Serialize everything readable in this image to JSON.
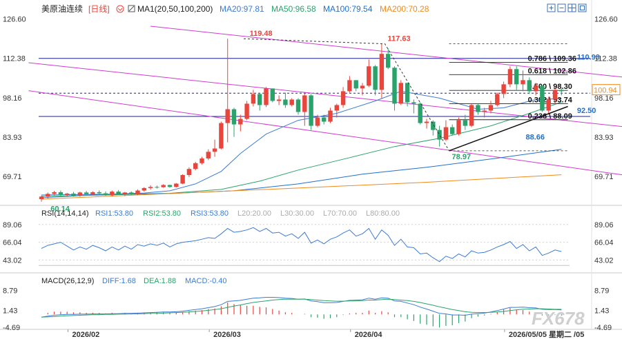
{
  "header": {
    "title": "美原油连续",
    "period": "[日线]",
    "ma1": "MA1(20,50,100,200)",
    "ma20": "MA20:97.81",
    "ma50": "MA50:96.58",
    "ma100": "MA100:79.54",
    "ma200": "MA200:70.28",
    "icons": [
      "toggle-icon",
      "plus-icon",
      "minus-icon",
      "grid-icon",
      "window-icon",
      "close-icon"
    ]
  },
  "colors": {
    "up": "#e8453c",
    "down": "#2aa36b",
    "ma20": "#3a7bd5",
    "ma50": "#2aa36b",
    "ma100": "#1f6fd0",
    "ma200": "#f08a1c",
    "channel": "#d23ad2",
    "hline": "#1b1f8f",
    "rsi1": "#3a7bd5",
    "rsi2": "#2aa36b",
    "rsi3": "#3a7bd5",
    "watermark": "#c7c7c7"
  },
  "chart_data": {
    "type": "candlestick",
    "price_axis": {
      "ticks": [
        "126.60",
        "112.38",
        "98.16",
        "83.93",
        "69.71"
      ],
      "ylim": [
        60,
        128
      ]
    },
    "candles": [
      [
        61.5,
        62.8,
        60.6,
        62.4
      ],
      [
        62.4,
        63.9,
        61.7,
        63.4
      ],
      [
        63.4,
        64.5,
        62.8,
        64.0
      ],
      [
        64.0,
        64.6,
        62.6,
        63.0
      ],
      [
        63.0,
        63.8,
        62.3,
        63.5
      ],
      [
        63.5,
        64.1,
        62.4,
        62.8
      ],
      [
        62.8,
        64.2,
        62.4,
        63.9
      ],
      [
        63.9,
        64.5,
        63.0,
        63.3
      ],
      [
        63.3,
        64.3,
        62.9,
        64.0
      ],
      [
        64.0,
        64.6,
        63.1,
        63.6
      ],
      [
        63.6,
        64.3,
        62.7,
        62.9
      ],
      [
        62.9,
        64.6,
        62.5,
        64.2
      ],
      [
        64.2,
        64.8,
        63.0,
        63.4
      ],
      [
        63.4,
        64.1,
        62.6,
        63.9
      ],
      [
        63.9,
        64.3,
        63.0,
        63.2
      ],
      [
        63.2,
        65.0,
        62.9,
        64.6
      ],
      [
        64.6,
        65.8,
        64.2,
        65.5
      ],
      [
        65.5,
        66.5,
        64.9,
        65.9
      ],
      [
        65.9,
        66.4,
        65.3,
        65.8
      ],
      [
        65.8,
        66.9,
        65.6,
        66.6
      ],
      [
        66.6,
        66.7,
        65.6,
        65.9
      ],
      [
        65.9,
        67.3,
        65.7,
        67.1
      ],
      [
        67.1,
        70.5,
        66.9,
        70.2
      ],
      [
        70.2,
        73.0,
        69.5,
        72.4
      ],
      [
        72.4,
        75.0,
        71.9,
        74.5
      ],
      [
        74.5,
        76.8,
        74.0,
        76.2
      ],
      [
        76.2,
        79.5,
        75.6,
        78.6
      ],
      [
        78.6,
        83.0,
        76.8,
        79.8
      ],
      [
        79.8,
        89.5,
        79.5,
        89.0
      ],
      [
        89.0,
        119.5,
        82.0,
        94.0
      ],
      [
        94.0,
        94.5,
        84.0,
        88.5
      ],
      [
        88.5,
        92.0,
        86.0,
        90.5
      ],
      [
        90.5,
        97.0,
        90.0,
        96.0
      ],
      [
        96.0,
        101.0,
        95.0,
        99.5
      ],
      [
        99.5,
        100.0,
        93.5,
        95.5
      ],
      [
        95.5,
        102.0,
        94.8,
        101.5
      ],
      [
        101.5,
        101.5,
        96.5,
        97.0
      ],
      [
        97.0,
        99.0,
        95.5,
        97.5
      ],
      [
        97.5,
        100.0,
        94.5,
        95.5
      ],
      [
        95.5,
        98.0,
        95.0,
        97.5
      ],
      [
        97.5,
        98.0,
        92.0,
        93.0
      ],
      [
        93.0,
        100.0,
        88.0,
        99.0
      ],
      [
        99.0,
        99.5,
        86.5,
        88.0
      ],
      [
        88.0,
        92.0,
        87.5,
        91.0
      ],
      [
        91.0,
        92.0,
        88.5,
        89.5
      ],
      [
        89.5,
        94.5,
        89.0,
        93.5
      ],
      [
        93.5,
        96.0,
        91.0,
        95.5
      ],
      [
        95.5,
        102.0,
        94.5,
        100.5
      ],
      [
        100.5,
        106.0,
        100.0,
        104.5
      ],
      [
        104.5,
        104.0,
        100.5,
        101.5
      ],
      [
        101.5,
        103.5,
        99.0,
        102.5
      ],
      [
        102.5,
        112.0,
        102.0,
        109.5
      ],
      [
        109.5,
        110.0,
        99.0,
        101.0
      ],
      [
        101.0,
        117.6,
        98.0,
        114.0
      ],
      [
        114.0,
        116.0,
        108.5,
        109.0
      ],
      [
        109.0,
        109.5,
        93.5,
        96.0
      ],
      [
        96.0,
        104.5,
        95.5,
        103.5
      ],
      [
        103.5,
        103.5,
        95.0,
        96.5
      ],
      [
        96.5,
        97.5,
        92.5,
        96.0
      ],
      [
        96.0,
        96.5,
        88.5,
        89.0
      ],
      [
        89.0,
        90.5,
        87.0,
        89.5
      ],
      [
        89.5,
        90.0,
        84.5,
        86.5
      ],
      [
        86.5,
        88.0,
        80.5,
        83.0
      ],
      [
        83.0,
        90.0,
        82.5,
        87.5
      ],
      [
        87.5,
        88.5,
        84.5,
        85.0
      ],
      [
        85.0,
        91.0,
        84.5,
        90.0
      ],
      [
        90.0,
        92.0,
        86.5,
        88.0
      ],
      [
        88.0,
        96.0,
        87.5,
        95.5
      ],
      [
        95.5,
        96.0,
        92.0,
        93.0
      ],
      [
        93.0,
        94.5,
        91.0,
        93.5
      ],
      [
        93.5,
        97.0,
        92.5,
        95.5
      ],
      [
        95.5,
        100.0,
        95.0,
        99.5
      ],
      [
        99.5,
        104.0,
        98.0,
        103.0
      ],
      [
        103.0,
        109.5,
        102.0,
        108.5
      ],
      [
        108.5,
        109.5,
        101.0,
        103.0
      ],
      [
        103.0,
        108.0,
        100.5,
        104.5
      ],
      [
        104.5,
        105.5,
        99.5,
        100.5
      ],
      [
        100.5,
        103.5,
        99.0,
        102.5
      ],
      [
        102.5,
        102.5,
        93.0,
        93.5
      ],
      [
        93.5,
        98.5,
        92.0,
        97.5
      ],
      [
        97.5,
        102.0,
        96.0,
        101.0
      ],
      [
        101.0,
        101.5,
        99.0,
        100.5
      ]
    ],
    "ma_series": [
      {
        "name": "MA20",
        "points": [
          [
            0,
            62.0
          ],
          [
            8,
            63.0
          ],
          [
            16,
            63.7
          ],
          [
            20,
            64.5
          ],
          [
            24,
            67.0
          ],
          [
            28,
            71.5
          ],
          [
            31,
            78.0
          ],
          [
            35,
            85.0
          ],
          [
            40,
            90.0
          ],
          [
            46,
            92.5
          ],
          [
            52,
            97.0
          ],
          [
            56,
            100.5
          ],
          [
            62,
            98.0
          ],
          [
            68,
            94.0
          ],
          [
            72,
            94.5
          ],
          [
            77,
            97.5
          ],
          [
            81,
            97.8
          ]
        ]
      },
      {
        "name": "MA50",
        "points": [
          [
            0,
            62.5
          ],
          [
            10,
            63.0
          ],
          [
            20,
            63.6
          ],
          [
            28,
            65.0
          ],
          [
            34,
            68.0
          ],
          [
            40,
            72.0
          ],
          [
            48,
            76.5
          ],
          [
            55,
            80.5
          ],
          [
            62,
            83.5
          ],
          [
            70,
            88.0
          ],
          [
            76,
            92.5
          ],
          [
            81,
            96.6
          ]
        ]
      },
      {
        "name": "MA100",
        "points": [
          [
            0,
            63.0
          ],
          [
            20,
            63.5
          ],
          [
            30,
            64.5
          ],
          [
            40,
            67.0
          ],
          [
            50,
            70.5
          ],
          [
            60,
            73.0
          ],
          [
            70,
            76.0
          ],
          [
            81,
            79.5
          ]
        ]
      },
      {
        "name": "MA200",
        "points": [
          [
            0,
            61.5
          ],
          [
            20,
            63.5
          ],
          [
            40,
            65.5
          ],
          [
            60,
            67.6
          ],
          [
            81,
            70.3
          ]
        ]
      }
    ],
    "channels": [
      {
        "from": [
          17,
          124.0
        ],
        "to": [
          95,
          104.5
        ]
      },
      {
        "from": [
          -2,
          110.8
        ],
        "to": [
          95,
          86.6
        ]
      },
      {
        "from": [
          -2,
          100.7
        ],
        "to": [
          95,
          68.8
        ]
      }
    ],
    "hlines": [
      {
        "y": 112.38,
        "style": "solid"
      },
      {
        "y": 99.8,
        "style": "dashed"
      },
      {
        "y": 91.4,
        "style": "solid"
      }
    ],
    "fib": {
      "x_start": 63.5,
      "x_end": 82,
      "levels": [
        {
          "y": 117.63,
          "label": ""
        },
        {
          "y": 110.93,
          "label": "0.786 \\ 109.36"
        },
        {
          "y": 106.5,
          "label": "0.618 \\ 102.86"
        },
        {
          "y": 100.8,
          "label": "0.500 \\ 98.30"
        },
        {
          "y": 96.0,
          "label": "0.382 \\ 93.74"
        },
        {
          "y": 90.2,
          "label": "0.236 \\ 88.09"
        },
        {
          "y": 78.97,
          "label": ""
        }
      ]
    },
    "annotations": [
      {
        "x": 32,
        "y": 119.48,
        "text": "119.48",
        "color": "#e8453c"
      },
      {
        "x": 53.5,
        "y": 117.63,
        "text": "117.63",
        "color": "#e8453c"
      },
      {
        "x": 63.5,
        "y": 78.97,
        "text": "78.97",
        "color": "#2aa36b"
      },
      {
        "x": 1,
        "y": 60.14,
        "text": "60.14",
        "color": "#2aa36b"
      },
      {
        "x": 75,
        "y": 86.0,
        "text": "88.66",
        "color": "#1f6fd0"
      },
      {
        "x": 83,
        "y": 110.93,
        "text": "110.93",
        "color": "#1f6fd0"
      },
      {
        "x": 83,
        "y": 95.6,
        "text": "92.50",
        "color": "#1f6fd0"
      }
    ],
    "trend": {
      "from": [
        63.5,
        78.97
      ],
      "to": [
        82,
        95.0
      ]
    },
    "zigzag": [
      [
        31.5,
        119.48
      ],
      [
        53.5,
        117.63
      ],
      [
        63.5,
        78.97
      ]
    ],
    "last_price": "100.94",
    "rsi": {
      "header": "RSI(14,14,14)",
      "rsi1": "RSI1:53.80",
      "rsi2": "RSI2:53.80",
      "rsi3": "RSI3:53.80",
      "levels": [
        "L20:20.00",
        "L30:30.00",
        "L70:70.00",
        "L80:80.00"
      ],
      "ticks": [
        "89.06",
        "66.04",
        "43.02"
      ],
      "ylim": [
        30,
        96
      ],
      "values": [
        58,
        62,
        64,
        66,
        61,
        56,
        60,
        57,
        62,
        59,
        55,
        60,
        56,
        61,
        57,
        63,
        61,
        64,
        62,
        65,
        60,
        64,
        66,
        67,
        68,
        70,
        72,
        71,
        77,
        84,
        79,
        80,
        82,
        85,
        80,
        84,
        78,
        79,
        74,
        77,
        71,
        79,
        65,
        69,
        64,
        70,
        73,
        78,
        82,
        74,
        77,
        84,
        70,
        82,
        75,
        62,
        70,
        60,
        59,
        51,
        52,
        46,
        41,
        48,
        45,
        51,
        47,
        55,
        52,
        53,
        56,
        60,
        63,
        67,
        58,
        63,
        55,
        60,
        49,
        52,
        56,
        54
      ]
    },
    "macd": {
      "header": "MACD(26,12,9)",
      "diff": "DIFF:1.68",
      "dea": "DEA:1.88",
      "macd": "MACD:-0.40",
      "ticks": [
        "8.79",
        "1.43",
        "-4.69"
      ],
      "ylim": [
        -5.5,
        10.5
      ],
      "diff_values": [
        -1.0,
        -0.6,
        -0.3,
        -0.1,
        0.0,
        0.0,
        0.1,
        0.1,
        0.2,
        0.2,
        0.2,
        0.3,
        0.3,
        0.4,
        0.4,
        0.5,
        0.6,
        0.7,
        0.8,
        0.9,
        0.9,
        1.0,
        1.2,
        1.5,
        1.8,
        2.1,
        2.5,
        2.9,
        3.6,
        4.8,
        5.0,
        5.2,
        5.6,
        6.0,
        6.1,
        6.3,
        6.3,
        6.2,
        6.0,
        5.9,
        5.6,
        5.7,
        5.0,
        4.7,
        4.3,
        4.3,
        4.4,
        4.8,
        5.2,
        5.3,
        5.4,
        6.0,
        5.6,
        6.1,
        6.0,
        5.0,
        4.8,
        4.2,
        3.6,
        2.7,
        2.0,
        1.2,
        0.4,
        0.2,
        -0.2,
        -0.2,
        -0.3,
        0.1,
        0.3,
        0.5,
        0.9,
        1.4,
        2.0,
        2.6,
        2.6,
        2.7,
        2.5,
        2.4,
        1.9,
        1.8,
        1.8,
        1.68
      ],
      "dea_values": [
        -1.0,
        -0.9,
        -0.8,
        -0.6,
        -0.5,
        -0.4,
        -0.3,
        -0.2,
        -0.1,
        -0.1,
        0.0,
        0.0,
        0.1,
        0.1,
        0.2,
        0.2,
        0.3,
        0.4,
        0.4,
        0.5,
        0.6,
        0.7,
        0.8,
        0.9,
        1.1,
        1.3,
        1.5,
        1.8,
        2.1,
        2.6,
        3.1,
        3.5,
        4.0,
        4.4,
        4.7,
        5.0,
        5.3,
        5.5,
        5.6,
        5.6,
        5.6,
        5.6,
        5.5,
        5.3,
        5.1,
        5.0,
        4.9,
        4.9,
        5.0,
        5.0,
        5.1,
        5.3,
        5.3,
        5.5,
        5.6,
        5.5,
        5.3,
        5.1,
        4.8,
        4.4,
        3.9,
        3.4,
        2.8,
        2.3,
        1.8,
        1.4,
        1.0,
        0.8,
        0.7,
        0.7,
        0.8,
        0.9,
        1.1,
        1.4,
        1.7,
        1.9,
        2.0,
        2.1,
        2.1,
        2.0,
        1.9,
        1.88
      ]
    },
    "x_axis": {
      "labels": [
        {
          "x": 5,
          "text": "2026/02"
        },
        {
          "x": 27,
          "text": "2026/03"
        },
        {
          "x": 49,
          "text": "2026/04"
        },
        {
          "x": 73,
          "text": "2026/05/05 星期二 /05"
        }
      ]
    }
  },
  "watermark": "FX678"
}
